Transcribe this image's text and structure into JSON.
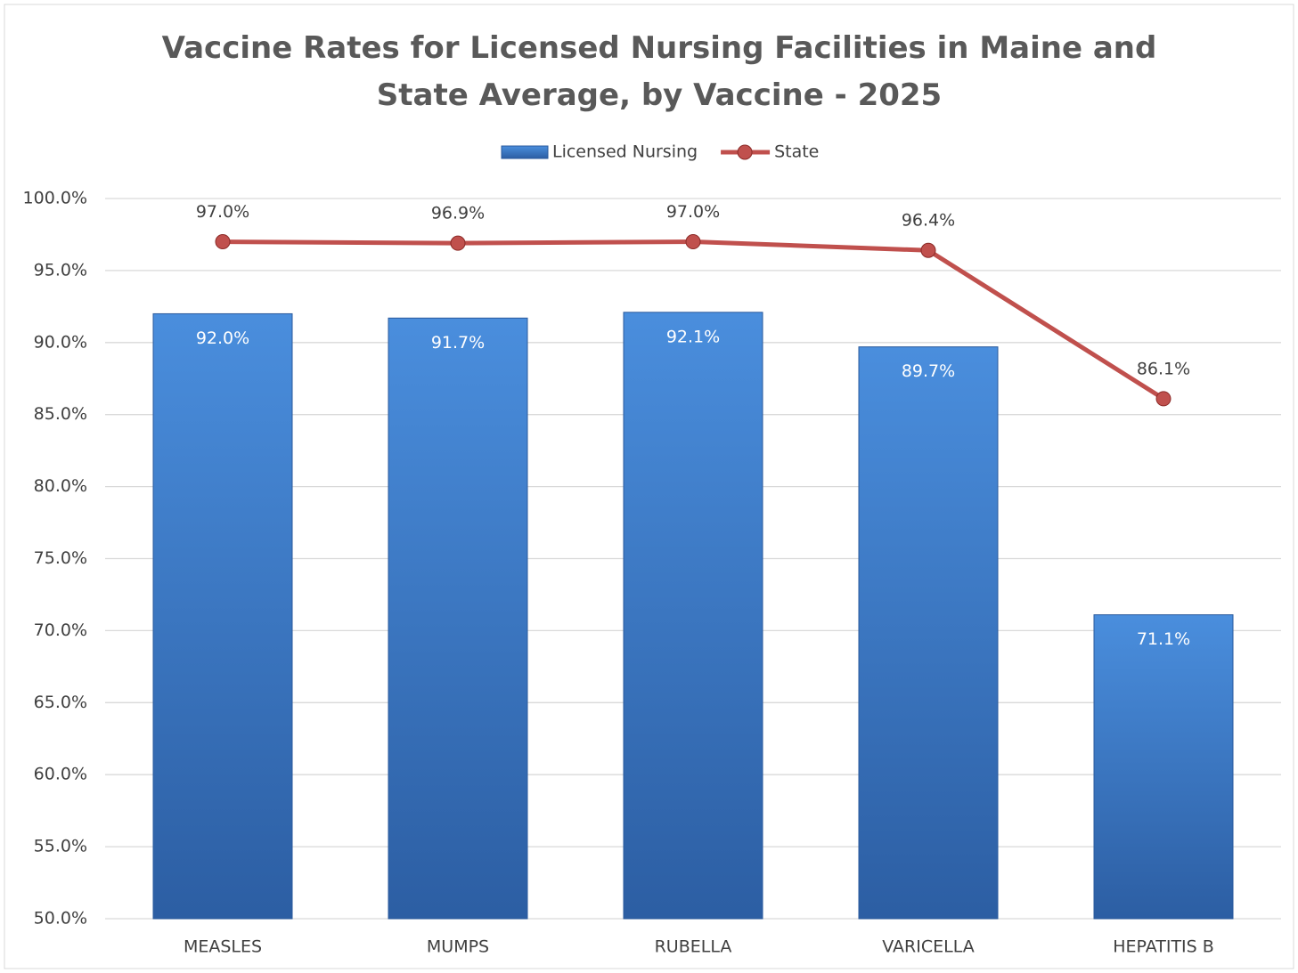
{
  "chart_data": {
    "type": "bar",
    "title": "Vaccine Rates for Licensed Nursing Facilities in Maine and State Average, by Vaccine - 2025",
    "categories": [
      "MEASLES",
      "MUMPS",
      "RUBELLA",
      "VARICELLA",
      "HEPATITIS B"
    ],
    "series": [
      {
        "name": "Licensed Nursing",
        "type": "bar",
        "color": "#3b7bcc",
        "values": [
          92.0,
          91.7,
          92.1,
          89.7,
          71.1
        ],
        "value_labels": [
          "92.0%",
          "91.7%",
          "92.1%",
          "89.7%",
          "71.1%"
        ]
      },
      {
        "name": "State",
        "type": "line",
        "color": "#c0504d",
        "values": [
          97.0,
          96.9,
          97.0,
          96.4,
          86.1
        ],
        "value_labels": [
          "97.0%",
          "96.9%",
          "97.0%",
          "96.4%",
          "86.1%"
        ]
      }
    ],
    "ylim": [
      50,
      100
    ],
    "yticks": [
      {
        "value": 50,
        "label": "50.0%"
      },
      {
        "value": 55,
        "label": "55.0%"
      },
      {
        "value": 60,
        "label": "60.0%"
      },
      {
        "value": 65,
        "label": "65.0%"
      },
      {
        "value": 70,
        "label": "70.0%"
      },
      {
        "value": 75,
        "label": "75.0%"
      },
      {
        "value": 80,
        "label": "80.0%"
      },
      {
        "value": 85,
        "label": "85.0%"
      },
      {
        "value": 90,
        "label": "90.0%"
      },
      {
        "value": 95,
        "label": "95.0%"
      },
      {
        "value": 100,
        "label": "100.0%"
      }
    ],
    "grid": true,
    "legend": "top"
  }
}
